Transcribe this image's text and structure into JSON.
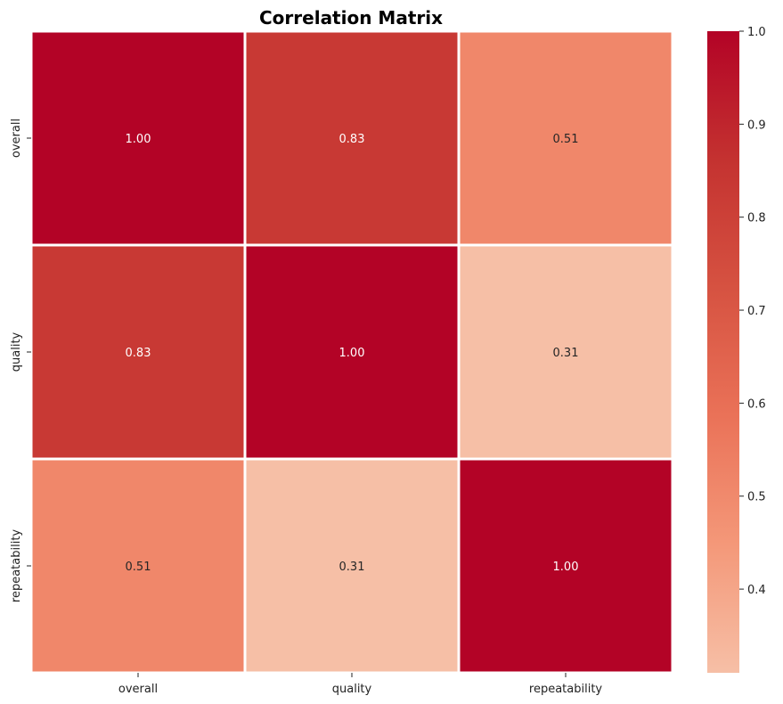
{
  "chart_data": {
    "type": "heatmap",
    "title": "Correlation Matrix",
    "xlabel": "",
    "ylabel": "",
    "x_categories": [
      "overall",
      "quality",
      "repeatability"
    ],
    "y_categories": [
      "overall",
      "quality",
      "repeatability"
    ],
    "values": [
      [
        1.0,
        0.83,
        0.51
      ],
      [
        0.83,
        1.0,
        0.31
      ],
      [
        0.51,
        0.31,
        1.0
      ]
    ],
    "cell_labels": [
      [
        "1.00",
        "0.83",
        "0.51"
      ],
      [
        "0.83",
        "1.00",
        "0.31"
      ],
      [
        "0.51",
        "0.31",
        "1.00"
      ]
    ],
    "colormap": "coolwarm",
    "colorbar": {
      "vmin": 0.31,
      "vmax": 1.0,
      "ticks": [
        0.4,
        0.5,
        0.6,
        0.7,
        0.8,
        0.9,
        1.0
      ],
      "tick_labels": [
        "0.4",
        "0.5",
        "0.6",
        "0.7",
        "0.8",
        "0.9",
        "1.0"
      ]
    },
    "grid": false
  }
}
